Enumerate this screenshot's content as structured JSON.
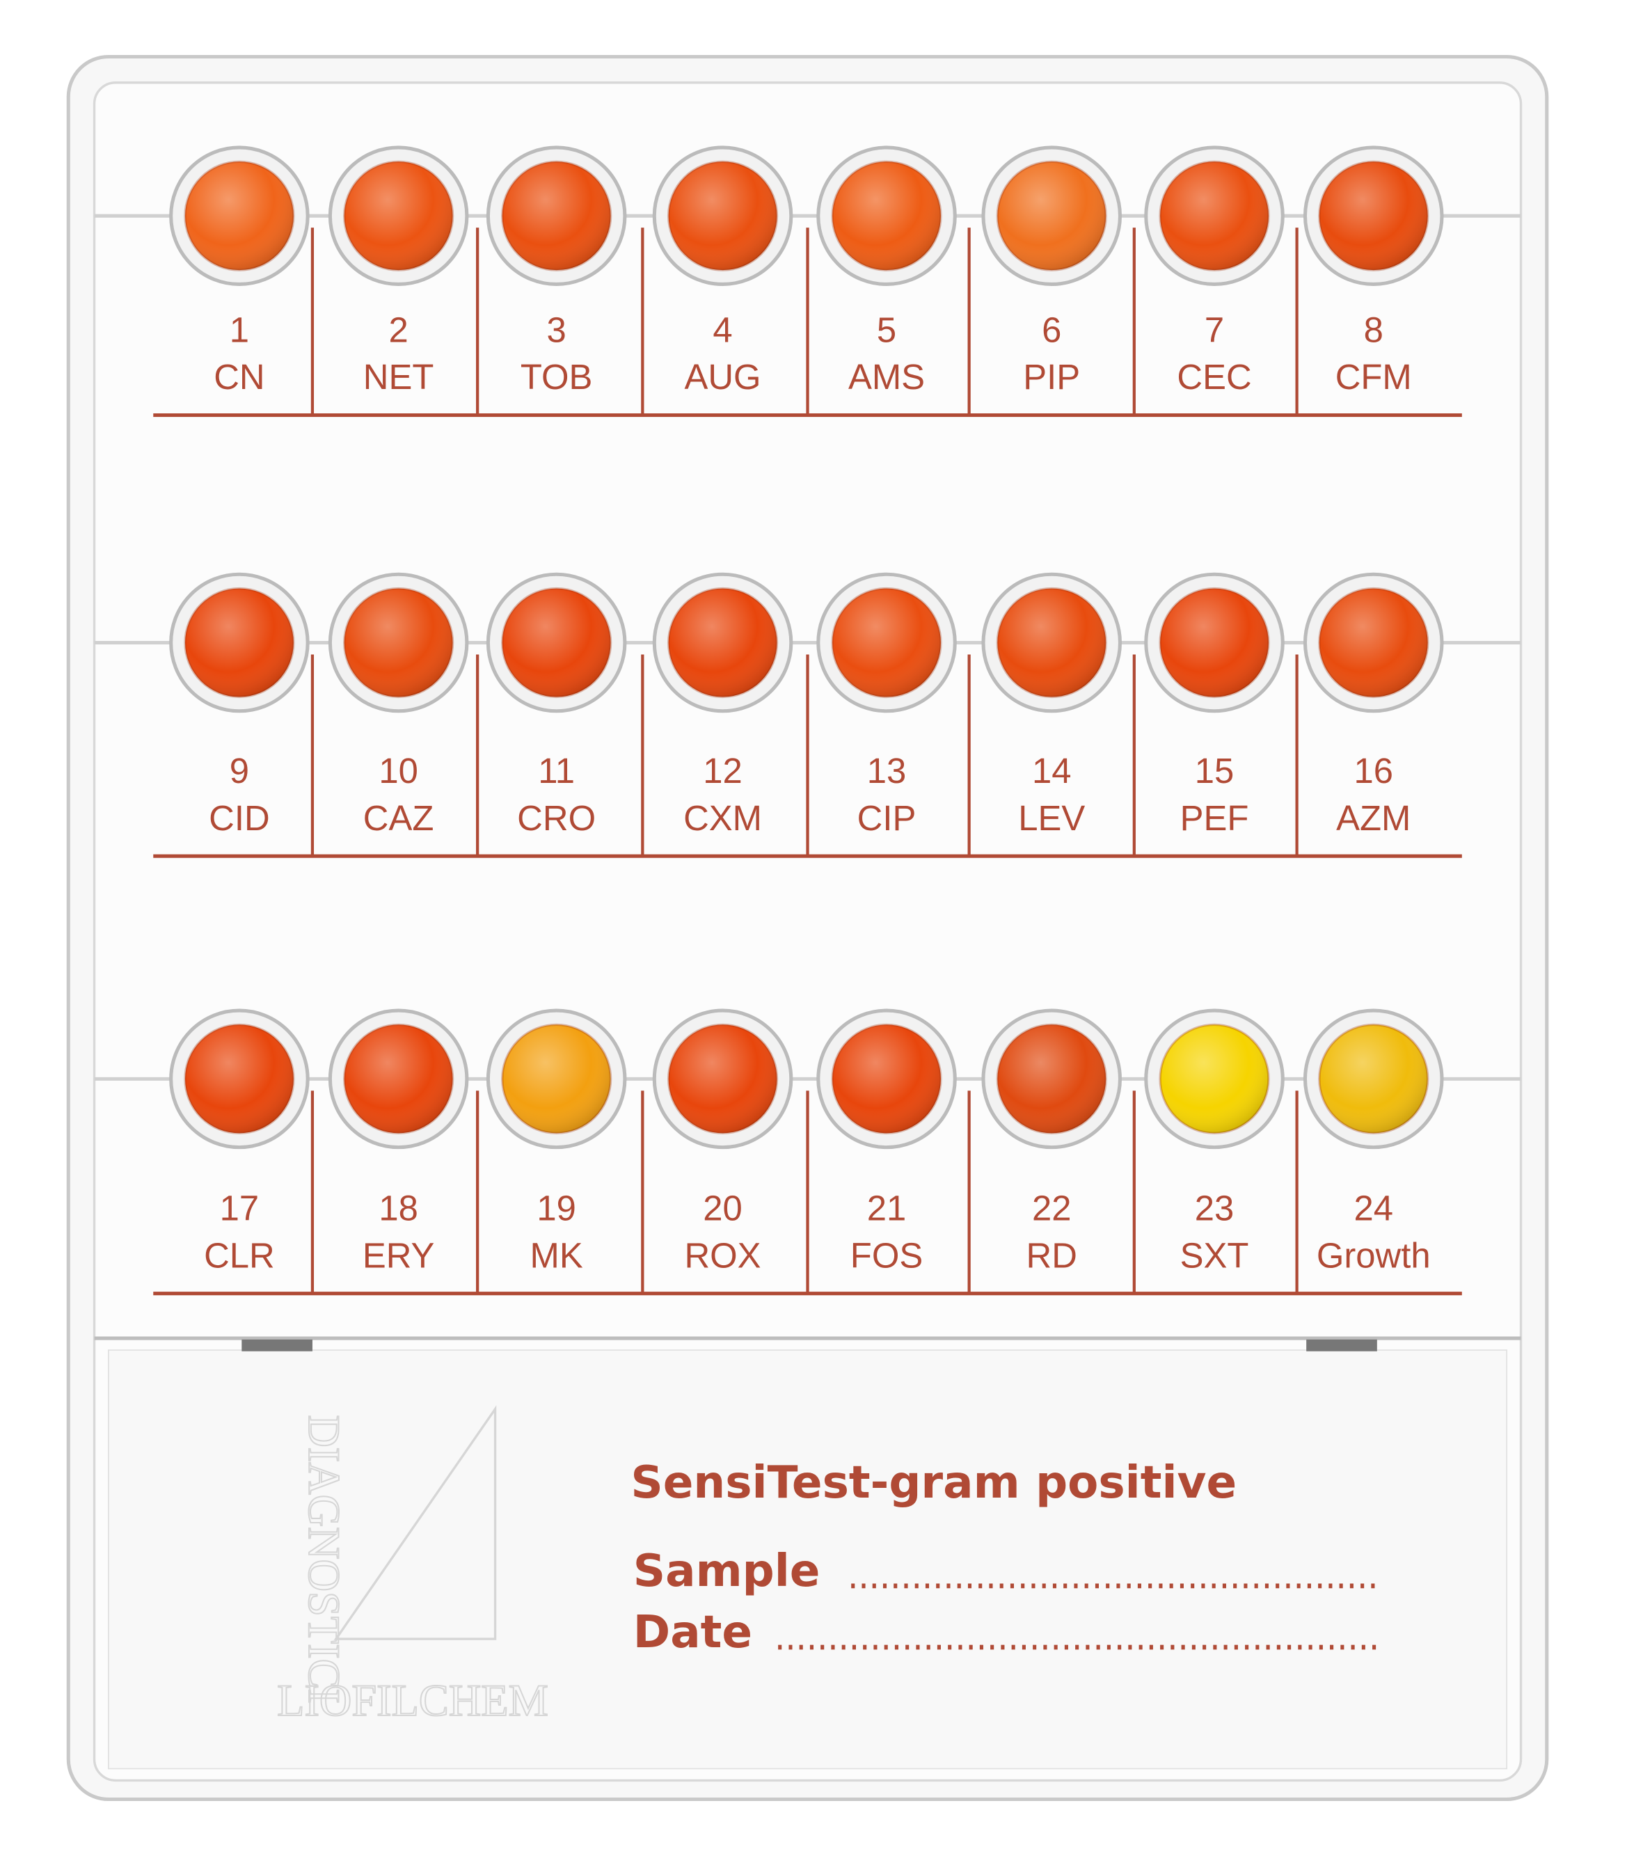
{
  "wells": [
    {
      "number": 1,
      "code": "CN",
      "color": "#f0641a"
    },
    {
      "number": 2,
      "code": "NET",
      "color": "#ec5412"
    },
    {
      "number": 3,
      "code": "TOB",
      "color": "#ea5010"
    },
    {
      "number": 4,
      "code": "AUG",
      "color": "#ea5010"
    },
    {
      "number": 5,
      "code": "AMS",
      "color": "#ee5c14"
    },
    {
      "number": 6,
      "code": "PIP",
      "color": "#f0701e"
    },
    {
      "number": 7,
      "code": "CEC",
      "color": "#ea5010"
    },
    {
      "number": 8,
      "code": "CFM",
      "color": "#e84c0e"
    },
    {
      "number": 9,
      "code": "CID",
      "color": "#e8460c"
    },
    {
      "number": 10,
      "code": "CAZ",
      "color": "#e84c0e"
    },
    {
      "number": 11,
      "code": "CRO",
      "color": "#e8460c"
    },
    {
      "number": 12,
      "code": "CXM",
      "color": "#e8460c"
    },
    {
      "number": 13,
      "code": "CIP",
      "color": "#ea4e10"
    },
    {
      "number": 14,
      "code": "LEV",
      "color": "#e84c0e"
    },
    {
      "number": 15,
      "code": "PEF",
      "color": "#e8460c"
    },
    {
      "number": 16,
      "code": "AZM",
      "color": "#e84c0e"
    },
    {
      "number": 17,
      "code": "CLR",
      "color": "#e8460c"
    },
    {
      "number": 18,
      "code": "ERY",
      "color": "#e8460c"
    },
    {
      "number": 19,
      "code": "MK",
      "color": "#f3a010"
    },
    {
      "number": 20,
      "code": "ROX",
      "color": "#e8460c"
    },
    {
      "number": 21,
      "code": "FOS",
      "color": "#e8460c"
    },
    {
      "number": 22,
      "code": "RD",
      "color": "#e04a10"
    },
    {
      "number": 23,
      "code": "SXT",
      "color": "#f6d400"
    },
    {
      "number": 24,
      "code": "Growth",
      "color": "#f0bc0c"
    }
  ],
  "label": {
    "title": "SensiTest-gram positive",
    "sample": "Sample",
    "date": "Date"
  },
  "logo": {
    "line": "DIAGNOSTICI",
    "brand": "LIOFILCHEM"
  }
}
